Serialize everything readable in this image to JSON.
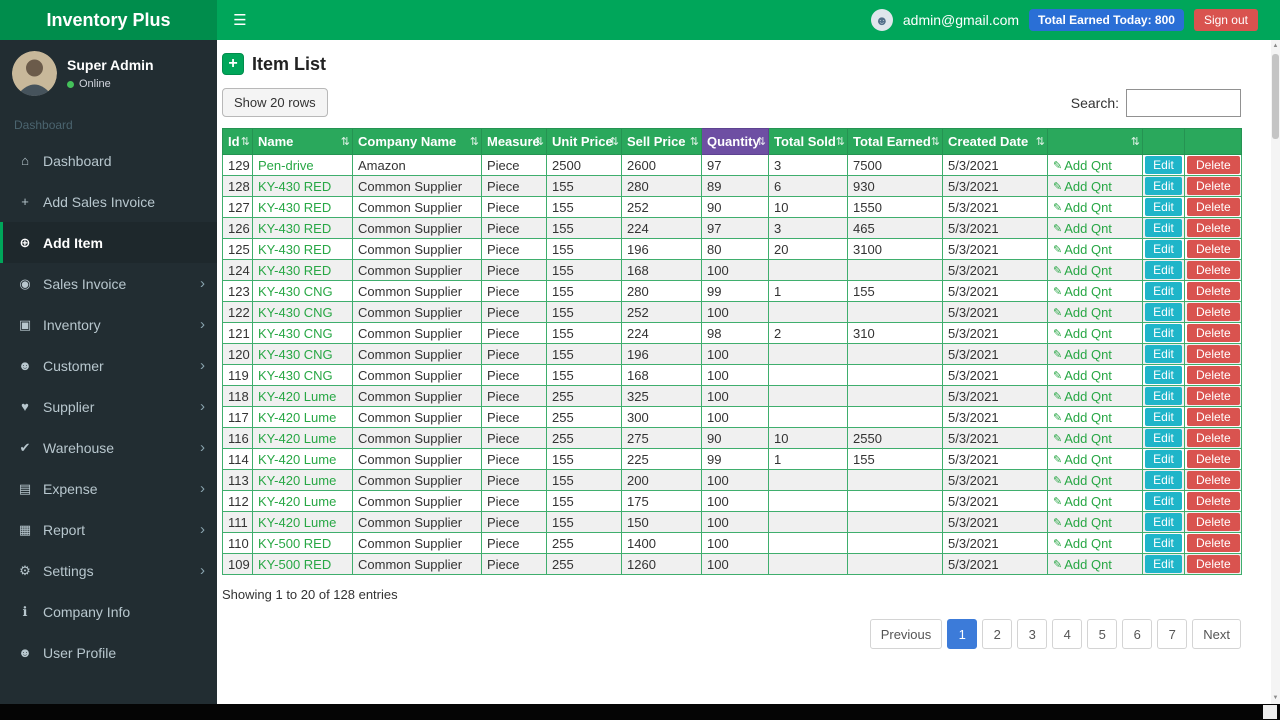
{
  "app": {
    "title": "Inventory Plus"
  },
  "header": {
    "email": "admin@gmail.com",
    "earned_badge": "Total Earned Today: 800",
    "signout_label": "Sign out"
  },
  "sidebar": {
    "user": {
      "name": "Super Admin",
      "status": "Online"
    },
    "section_label": "Dashboard",
    "items": [
      {
        "id": "dashboard",
        "label": "Dashboard",
        "icon": "dashboard-icon",
        "active": false,
        "chevron": false
      },
      {
        "id": "add-sales-invoice",
        "label": "Add Sales Invoice",
        "icon": "plus-icon",
        "active": false,
        "chevron": false
      },
      {
        "id": "add-item",
        "label": "Add Item",
        "icon": "cart-plus-icon",
        "active": true,
        "chevron": false
      },
      {
        "id": "sales-invoice",
        "label": "Sales Invoice",
        "icon": "invoice-icon",
        "active": false,
        "chevron": true
      },
      {
        "id": "inventory",
        "label": "Inventory",
        "icon": "inventory-icon",
        "active": false,
        "chevron": true
      },
      {
        "id": "customer",
        "label": "Customer",
        "icon": "customer-icon",
        "active": false,
        "chevron": true
      },
      {
        "id": "supplier",
        "label": "Supplier",
        "icon": "supplier-icon",
        "active": false,
        "chevron": true
      },
      {
        "id": "warehouse",
        "label": "Warehouse",
        "icon": "warehouse-icon",
        "active": false,
        "chevron": true
      },
      {
        "id": "expense",
        "label": "Expense",
        "icon": "expense-icon",
        "active": false,
        "chevron": true
      },
      {
        "id": "report",
        "label": "Report",
        "icon": "report-icon",
        "active": false,
        "chevron": true
      },
      {
        "id": "settings",
        "label": "Settings",
        "icon": "settings-icon",
        "active": false,
        "chevron": true
      },
      {
        "id": "company-info",
        "label": "Company Info",
        "icon": "info-icon",
        "active": false,
        "chevron": false
      },
      {
        "id": "user-profile",
        "label": "User Profile",
        "icon": "user-icon",
        "active": false,
        "chevron": false
      }
    ]
  },
  "main": {
    "title": "Item List",
    "show_rows_label": "Show 20 rows",
    "search_label": "Search:",
    "entries_text": "Showing 1 to 20 of 128 entries",
    "table": {
      "columns": [
        {
          "key": "id",
          "label": "Id",
          "sortable": true
        },
        {
          "key": "name",
          "label": "Name",
          "sortable": true
        },
        {
          "key": "company",
          "label": "Company Name",
          "sortable": true
        },
        {
          "key": "measure",
          "label": "Measure",
          "sortable": true
        },
        {
          "key": "unit_price",
          "label": "Unit Price",
          "sortable": true
        },
        {
          "key": "sell_price",
          "label": "Sell Price",
          "sortable": true
        },
        {
          "key": "quantity",
          "label": "Quantity",
          "sortable": true,
          "highlight": true
        },
        {
          "key": "total_sold",
          "label": "Total Sold",
          "sortable": true
        },
        {
          "key": "total_earned",
          "label": "Total Earned",
          "sortable": true
        },
        {
          "key": "created",
          "label": "Created Date",
          "sortable": true
        },
        {
          "key": "add_qnt",
          "label": "",
          "sortable": true
        },
        {
          "key": "edit",
          "label": "",
          "sortable": false
        },
        {
          "key": "delete",
          "label": "",
          "sortable": false
        }
      ],
      "add_qnt_label": "Add Qnt",
      "edit_label": "Edit",
      "delete_label": "Delete",
      "rows": [
        {
          "id": "129",
          "name": "Pen-drive",
          "company": "Amazon",
          "measure": "Piece",
          "unit_price": "2500",
          "sell_price": "2600",
          "quantity": "97",
          "total_sold": "3",
          "total_earned": "7500",
          "created": "5/3/2021"
        },
        {
          "id": "128",
          "name": "KY-430 RED",
          "company": "Common Supplier",
          "measure": "Piece",
          "unit_price": "155",
          "sell_price": "280",
          "quantity": "89",
          "total_sold": "6",
          "total_earned": "930",
          "created": "5/3/2021"
        },
        {
          "id": "127",
          "name": "KY-430 RED",
          "company": "Common Supplier",
          "measure": "Piece",
          "unit_price": "155",
          "sell_price": "252",
          "quantity": "90",
          "total_sold": "10",
          "total_earned": "1550",
          "created": "5/3/2021"
        },
        {
          "id": "126",
          "name": "KY-430 RED",
          "company": "Common Supplier",
          "measure": "Piece",
          "unit_price": "155",
          "sell_price": "224",
          "quantity": "97",
          "total_sold": "3",
          "total_earned": "465",
          "created": "5/3/2021"
        },
        {
          "id": "125",
          "name": "KY-430 RED",
          "company": "Common Supplier",
          "measure": "Piece",
          "unit_price": "155",
          "sell_price": "196",
          "quantity": "80",
          "total_sold": "20",
          "total_earned": "3100",
          "created": "5/3/2021"
        },
        {
          "id": "124",
          "name": "KY-430 RED",
          "company": "Common Supplier",
          "measure": "Piece",
          "unit_price": "155",
          "sell_price": "168",
          "quantity": "100",
          "total_sold": "",
          "total_earned": "",
          "created": "5/3/2021"
        },
        {
          "id": "123",
          "name": "KY-430 CNG",
          "company": "Common Supplier",
          "measure": "Piece",
          "unit_price": "155",
          "sell_price": "280",
          "quantity": "99",
          "total_sold": "1",
          "total_earned": "155",
          "created": "5/3/2021"
        },
        {
          "id": "122",
          "name": "KY-430 CNG",
          "company": "Common Supplier",
          "measure": "Piece",
          "unit_price": "155",
          "sell_price": "252",
          "quantity": "100",
          "total_sold": "",
          "total_earned": "",
          "created": "5/3/2021"
        },
        {
          "id": "121",
          "name": "KY-430 CNG",
          "company": "Common Supplier",
          "measure": "Piece",
          "unit_price": "155",
          "sell_price": "224",
          "quantity": "98",
          "total_sold": "2",
          "total_earned": "310",
          "created": "5/3/2021"
        },
        {
          "id": "120",
          "name": "KY-430 CNG",
          "company": "Common Supplier",
          "measure": "Piece",
          "unit_price": "155",
          "sell_price": "196",
          "quantity": "100",
          "total_sold": "",
          "total_earned": "",
          "created": "5/3/2021"
        },
        {
          "id": "119",
          "name": "KY-430 CNG",
          "company": "Common Supplier",
          "measure": "Piece",
          "unit_price": "155",
          "sell_price": "168",
          "quantity": "100",
          "total_sold": "",
          "total_earned": "",
          "created": "5/3/2021"
        },
        {
          "id": "118",
          "name": "KY-420 Lume",
          "company": "Common Supplier",
          "measure": "Piece",
          "unit_price": "255",
          "sell_price": "325",
          "quantity": "100",
          "total_sold": "",
          "total_earned": "",
          "created": "5/3/2021"
        },
        {
          "id": "117",
          "name": "KY-420 Lume",
          "company": "Common Supplier",
          "measure": "Piece",
          "unit_price": "255",
          "sell_price": "300",
          "quantity": "100",
          "total_sold": "",
          "total_earned": "",
          "created": "5/3/2021"
        },
        {
          "id": "116",
          "name": "KY-420 Lume",
          "company": "Common Supplier",
          "measure": "Piece",
          "unit_price": "255",
          "sell_price": "275",
          "quantity": "90",
          "total_sold": "10",
          "total_earned": "2550",
          "created": "5/3/2021"
        },
        {
          "id": "114",
          "name": "KY-420 Lume",
          "company": "Common Supplier",
          "measure": "Piece",
          "unit_price": "155",
          "sell_price": "225",
          "quantity": "99",
          "total_sold": "1",
          "total_earned": "155",
          "created": "5/3/2021"
        },
        {
          "id": "113",
          "name": "KY-420 Lume",
          "company": "Common Supplier",
          "measure": "Piece",
          "unit_price": "155",
          "sell_price": "200",
          "quantity": "100",
          "total_sold": "",
          "total_earned": "",
          "created": "5/3/2021"
        },
        {
          "id": "112",
          "name": "KY-420 Lume",
          "company": "Common Supplier",
          "measure": "Piece",
          "unit_price": "155",
          "sell_price": "175",
          "quantity": "100",
          "total_sold": "",
          "total_earned": "",
          "created": "5/3/2021"
        },
        {
          "id": "111",
          "name": "KY-420 Lume",
          "company": "Common Supplier",
          "measure": "Piece",
          "unit_price": "155",
          "sell_price": "150",
          "quantity": "100",
          "total_sold": "",
          "total_earned": "",
          "created": "5/3/2021"
        },
        {
          "id": "110",
          "name": "KY-500 RED",
          "company": "Common Supplier",
          "measure": "Piece",
          "unit_price": "255",
          "sell_price": "1400",
          "quantity": "100",
          "total_sold": "",
          "total_earned": "",
          "created": "5/3/2021"
        },
        {
          "id": "109",
          "name": "KY-500 RED",
          "company": "Common Supplier",
          "measure": "Piece",
          "unit_price": "255",
          "sell_price": "1260",
          "quantity": "100",
          "total_sold": "",
          "total_earned": "",
          "created": "5/3/2021"
        }
      ]
    },
    "pagination": {
      "previous": "Previous",
      "pages": [
        "1",
        "2",
        "3",
        "4",
        "5",
        "6",
        "7"
      ],
      "active": "1",
      "next": "Next"
    }
  },
  "colors": {
    "topbar_green": "#00a65a",
    "logo_green": "#008d4c",
    "table_header_green": "#2aa85c",
    "quantity_purple": "#6e4fa3",
    "edit_cyan": "#1fb5c9",
    "delete_red": "#d9534f",
    "link_green": "#28a745",
    "badge_blue": "#2a6fd6",
    "active_page_blue": "#3c7bd9"
  }
}
